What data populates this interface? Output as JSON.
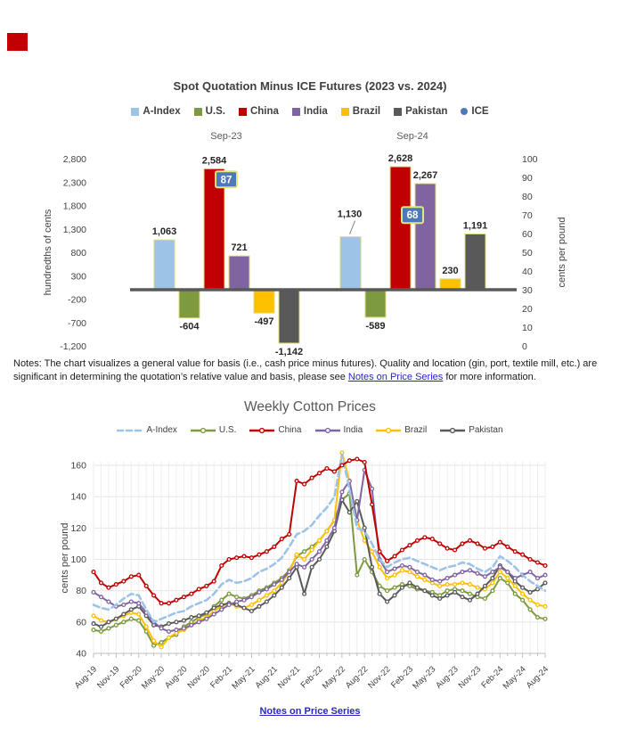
{
  "decoration": {
    "red_mark_color": "#C00000"
  },
  "chart_data": [
    {
      "type": "bar",
      "title": "Spot Quotation Minus ICE Futures (2023 vs. 2024)",
      "left_axis": {
        "label": "hundredths of cents",
        "min": -1200,
        "max": 2800,
        "step": 500
      },
      "right_axis": {
        "label": "cents per pound",
        "min": 0,
        "max": 100,
        "step": 10
      },
      "groups": [
        "Sep-23",
        "Sep-24"
      ],
      "series": [
        {
          "name": "A-Index",
          "color": "#9DC3E6",
          "values": [
            1063,
            1130
          ]
        },
        {
          "name": "U.S.",
          "color": "#7D9A3F",
          "values": [
            -604,
            -589
          ]
        },
        {
          "name": "China",
          "color": "#C00000",
          "values": [
            2584,
            2628
          ]
        },
        {
          "name": "India",
          "color": "#8064A2",
          "values": [
            721,
            2267
          ]
        },
        {
          "name": "Brazil",
          "color": "#FFC000",
          "values": [
            -497,
            230
          ]
        },
        {
          "name": "Pakistan",
          "color": "#595959",
          "values": [
            -1142,
            1191
          ]
        }
      ],
      "ice": {
        "name": "ICE",
        "color": "#4E79B8",
        "axis": "right",
        "values": [
          87,
          68
        ]
      }
    },
    {
      "type": "line",
      "title": "Weekly Cotton Prices",
      "ylabel": "cents per pound",
      "ylim": [
        40,
        160
      ],
      "ytick_step": 20,
      "x_tick_labels": [
        "Aug-19",
        "Nov-19",
        "Feb-20",
        "May-20",
        "Aug-20",
        "Nov-20",
        "Feb-21",
        "May-21",
        "Aug-21",
        "Nov-21",
        "Feb-22",
        "May-22",
        "Aug-22",
        "Nov-22",
        "Feb-23",
        "May-23",
        "Aug-23",
        "Nov-23",
        "Feb-24",
        "May-24",
        "Aug-24"
      ],
      "series": [
        {
          "name": "A-Index",
          "color": "#9DC3E6",
          "dashed": true,
          "values": [
            71,
            69,
            68,
            71,
            75,
            78,
            77,
            68,
            60,
            62,
            64,
            66,
            67,
            70,
            72,
            74,
            78,
            84,
            87,
            85,
            86,
            88,
            92,
            94,
            97,
            101,
            108,
            116,
            118,
            122,
            128,
            133,
            140,
            167,
            145,
            120,
            118,
            110,
            100,
            95,
            98,
            100,
            101,
            99,
            97,
            95,
            93,
            95,
            96,
            98,
            97,
            94,
            92,
            95,
            102,
            99,
            95,
            90,
            86,
            83,
            80
          ]
        },
        {
          "name": "U.S.",
          "color": "#7D9A3F",
          "dashed": false,
          "values": [
            55,
            54,
            56,
            58,
            60,
            62,
            61,
            54,
            45,
            47,
            50,
            52,
            57,
            60,
            63,
            65,
            70,
            74,
            78,
            76,
            75,
            77,
            80,
            82,
            85,
            88,
            93,
            102,
            105,
            108,
            112,
            118,
            125,
            138,
            142,
            90,
            100,
            92,
            83,
            80,
            82,
            84,
            83,
            81,
            80,
            79,
            77,
            80,
            81,
            80,
            78,
            76,
            75,
            80,
            88,
            85,
            78,
            74,
            68,
            63,
            62
          ]
        },
        {
          "name": "China",
          "color": "#C00000",
          "dashed": false,
          "values": [
            92,
            85,
            82,
            84,
            86,
            89,
            90,
            83,
            77,
            72,
            72,
            74,
            76,
            78,
            81,
            83,
            86,
            96,
            100,
            101,
            102,
            101,
            103,
            105,
            108,
            113,
            116,
            150,
            148,
            152,
            155,
            158,
            156,
            160,
            163,
            164,
            162,
            135,
            105,
            99,
            102,
            106,
            109,
            112,
            114,
            113,
            110,
            107,
            106,
            110,
            112,
            110,
            107,
            108,
            111,
            108,
            105,
            103,
            100,
            98,
            96
          ]
        },
        {
          "name": "India",
          "color": "#8064A2",
          "dashed": false,
          "values": [
            79,
            76,
            73,
            70,
            71,
            73,
            72,
            66,
            60,
            56,
            54,
            55,
            56,
            58,
            60,
            62,
            65,
            68,
            71,
            73,
            74,
            76,
            79,
            81,
            84,
            87,
            92,
            97,
            95,
            100,
            105,
            112,
            120,
            143,
            150,
            125,
            157,
            145,
            100,
            92,
            94,
            96,
            95,
            92,
            90,
            87,
            86,
            88,
            90,
            92,
            93,
            91,
            89,
            92,
            95,
            92,
            88,
            90,
            92,
            88,
            90
          ]
        },
        {
          "name": "Brazil",
          "color": "#FFC000",
          "dashed": false,
          "values": [
            64,
            61,
            60,
            62,
            64,
            66,
            65,
            57,
            48,
            44,
            50,
            53,
            55,
            58,
            61,
            63,
            67,
            70,
            72,
            70,
            69,
            71,
            74,
            77,
            80,
            85,
            92,
            103,
            100,
            106,
            112,
            118,
            125,
            168,
            150,
            125,
            112,
            105,
            95,
            88,
            90,
            93,
            92,
            89,
            87,
            85,
            83,
            84,
            84,
            85,
            84,
            82,
            81,
            85,
            92,
            88,
            83,
            78,
            74,
            71,
            70
          ]
        },
        {
          "name": "Pakistan",
          "color": "#595959",
          "dashed": false,
          "values": [
            59,
            57,
            60,
            62,
            65,
            68,
            70,
            64,
            58,
            57,
            59,
            60,
            61,
            63,
            64,
            66,
            69,
            71,
            72,
            71,
            69,
            67,
            70,
            73,
            77,
            82,
            88,
            95,
            78,
            95,
            100,
            108,
            118,
            138,
            130,
            137,
            120,
            95,
            78,
            73,
            77,
            82,
            85,
            82,
            80,
            77,
            75,
            77,
            79,
            76,
            74,
            78,
            83,
            88,
            96,
            92,
            86,
            82,
            79,
            81,
            85
          ]
        }
      ]
    }
  ],
  "notes": {
    "prefix": "Notes: The chart visualizes a general value for basis (i.e., cash price minus futures). Quality and location (gin, port, textile mill, etc.) are significant in determining the quotation’s relative value and basis, please see ",
    "link": "Notes on Price Series",
    "suffix": " for more information."
  },
  "footer": {
    "link": "Notes on Price Series"
  }
}
